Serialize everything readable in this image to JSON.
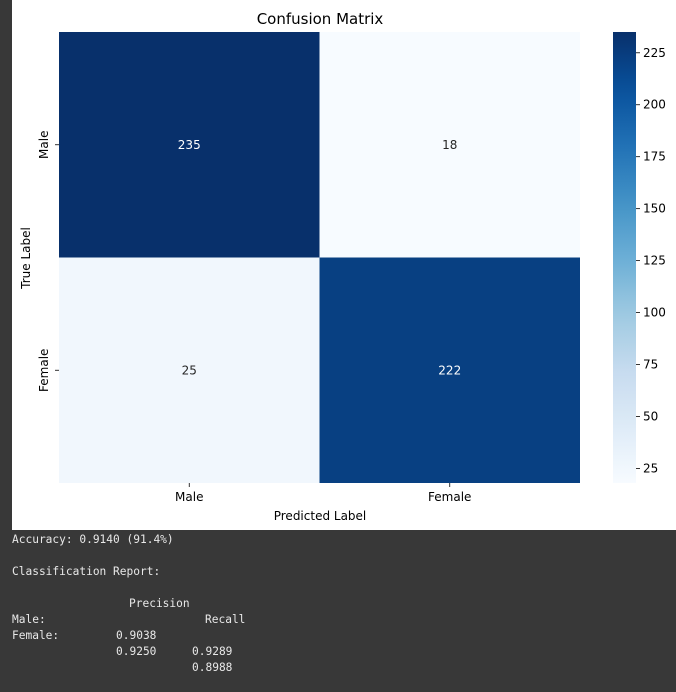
{
  "chart_data": {
    "type": "heatmap",
    "title": "Confusion Matrix",
    "xlabel": "Predicted Label",
    "ylabel": "True Label",
    "x_categories": [
      "Male",
      "Female"
    ],
    "y_categories": [
      "Male",
      "Female"
    ],
    "values": [
      [
        235,
        18
      ],
      [
        25,
        222
      ]
    ],
    "colormap": "Blues",
    "colorbar": {
      "min": 18,
      "max": 235,
      "ticks": [
        25,
        50,
        75,
        100,
        125,
        150,
        175,
        200,
        225
      ]
    },
    "colors": {
      "low": "#f7fbff",
      "high": "#08306b"
    }
  },
  "console": {
    "accuracy_line": "Accuracy: 0.9140 (91.4%)",
    "report_title": "Classification Report:",
    "headers": [
      "Precision",
      "Recall"
    ],
    "rows": [
      {
        "label": "Male:",
        "precision": "0.9038",
        "recall": "0.9289"
      },
      {
        "label": "Female:",
        "precision": "0.9250",
        "recall": "0.8988"
      }
    ]
  }
}
